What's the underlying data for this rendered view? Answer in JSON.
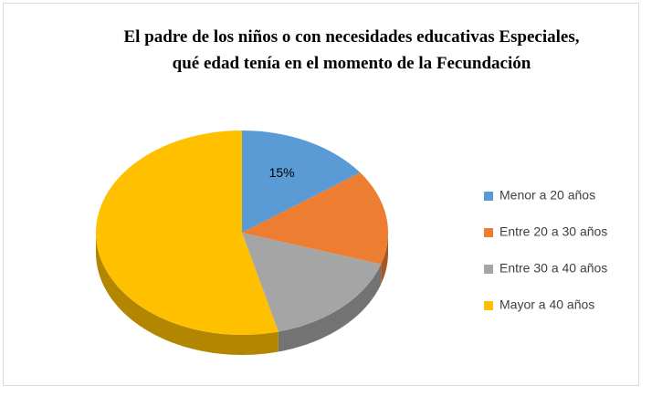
{
  "chart_data": {
    "type": "pie",
    "title": "El padre de los niños o con necesidades educativas Especiales,  qué edad tenía en el momento de la Fecundación",
    "categories": [
      "Menor a 20 años",
      "Entre 20 a 30 años",
      "Entre 30 a 40 años",
      "Mayor a 40 años"
    ],
    "values": [
      15,
      15,
      16,
      54
    ],
    "value_labels": [
      "15%",
      null,
      null,
      null
    ],
    "colors": [
      "#5b9bd5",
      "#ed7d31",
      "#a5a5a5",
      "#ffc000"
    ],
    "legend": "right"
  }
}
